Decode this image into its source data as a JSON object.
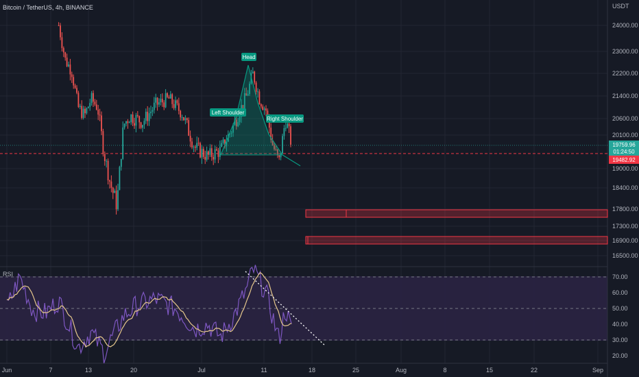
{
  "header": {
    "title": "Bitcoin / TetherUS, 4h, BINANCE"
  },
  "price_axis": {
    "currency": "USDT",
    "ticks": [
      "24000.00",
      "23000.00",
      "22200.00",
      "21400.00",
      "20600.00",
      "20100.00",
      "19000.00",
      "18400.00",
      "17800.00",
      "17300.00",
      "16900.00",
      "16500.00"
    ],
    "current_price": "19759.96",
    "countdown": "01:24:50",
    "alert_price": "19482.92"
  },
  "rsi_axis": {
    "label": "RSI",
    "ticks": [
      "70.00",
      "60.00",
      "50.00",
      "40.00",
      "30.00",
      "20.00"
    ]
  },
  "time_axis": {
    "ticks": [
      "Jun",
      "7",
      "13",
      "20",
      "Jul",
      "11",
      "18",
      "25",
      "Aug",
      "8",
      "15",
      "22",
      "Sep"
    ]
  },
  "annotations": {
    "head": "Head",
    "left_shoulder": "Left Shoulder",
    "right_shoulder": "Right Shoulder"
  },
  "colors": {
    "background": "#161a25",
    "up": "#26a69a",
    "down": "#ef5350",
    "pattern": "#089981",
    "zone": "#f23645",
    "rsi": "#7e57c2",
    "rsi_ma": "#e6c88c",
    "rsi_band": "#2a2442",
    "grid": "#232632"
  },
  "chart_data": {
    "type": "candlestick",
    "instrument": "Bitcoin / TetherUS",
    "timeframe": "4h",
    "exchange": "BINANCE",
    "price_close_path": [
      {
        "x": "Jun 9",
        "y": 24000
      },
      {
        "x": "Jun 10",
        "y": 22700
      },
      {
        "x": "Jun 11",
        "y": 22300
      },
      {
        "x": "Jun 12",
        "y": 21000
      },
      {
        "x": "Jun 13",
        "y": 20700
      },
      {
        "x": "Jun 14",
        "y": 21300
      },
      {
        "x": "Jun 15",
        "y": 21000
      },
      {
        "x": "Jun 16",
        "y": 19500
      },
      {
        "x": "Jun 17",
        "y": 18500
      },
      {
        "x": "Jun 18",
        "y": 17900
      },
      {
        "x": "Jun 19",
        "y": 20400
      },
      {
        "x": "Jun 20",
        "y": 20700
      },
      {
        "x": "Jun 22",
        "y": 20500
      },
      {
        "x": "Jun 24",
        "y": 21100
      },
      {
        "x": "Jun 26",
        "y": 21300
      },
      {
        "x": "Jun 28",
        "y": 20800
      },
      {
        "x": "Jun 30",
        "y": 19700
      },
      {
        "x": "Jul 2",
        "y": 19400
      },
      {
        "x": "Jul 4",
        "y": 19600
      },
      {
        "x": "Jul 6",
        "y": 20400
      },
      {
        "x": "Jul 8",
        "y": 21400
      },
      {
        "x": "Jul 9",
        "y": 22200
      },
      {
        "x": "Jul 10",
        "y": 21300
      },
      {
        "x": "Jul 11",
        "y": 20900
      },
      {
        "x": "Jul 12",
        "y": 19800
      },
      {
        "x": "Jul 13",
        "y": 19200
      },
      {
        "x": "Jul 14",
        "y": 20600
      },
      {
        "x": "Jul 15",
        "y": 19760
      }
    ],
    "pattern": {
      "name": "Head and Shoulders",
      "left_shoulder": 20800,
      "head": 22400,
      "right_shoulder": 20600,
      "neckline": 19900
    },
    "zones": [
      {
        "from": 17650,
        "to": 17850
      },
      {
        "from": 16800,
        "to": 17000
      }
    ],
    "lines": [
      {
        "type": "dotted",
        "value": 20100
      },
      {
        "type": "dashed",
        "value": 19482.92
      }
    ],
    "rsi": {
      "levels": [
        70,
        50,
        30
      ],
      "path": [
        {
          "x": "Jun 1",
          "y": 50
        },
        {
          "x": "Jun 3",
          "y": 70
        },
        {
          "x": "Jun 5",
          "y": 49
        },
        {
          "x": "Jun 7",
          "y": 47
        },
        {
          "x": "Jun 9",
          "y": 55
        },
        {
          "x": "Jun 12",
          "y": 25
        },
        {
          "x": "Jun 14",
          "y": 35
        },
        {
          "x": "Jun 16",
          "y": 22
        },
        {
          "x": "Jun 19",
          "y": 45
        },
        {
          "x": "Jun 21",
          "y": 52
        },
        {
          "x": "Jun 24",
          "y": 56
        },
        {
          "x": "Jun 27",
          "y": 50
        },
        {
          "x": "Jun 30",
          "y": 37
        },
        {
          "x": "Jul 2",
          "y": 40
        },
        {
          "x": "Jul 4",
          "y": 32
        },
        {
          "x": "Jul 6",
          "y": 45
        },
        {
          "x": "Jul 8",
          "y": 62
        },
        {
          "x": "Jul 9",
          "y": 75
        },
        {
          "x": "Jul 11",
          "y": 60
        },
        {
          "x": "Jul 12",
          "y": 45
        },
        {
          "x": "Jul 13",
          "y": 30
        },
        {
          "x": "Jul 14",
          "y": 50
        },
        {
          "x": "Jul 15",
          "y": 35
        }
      ]
    }
  }
}
